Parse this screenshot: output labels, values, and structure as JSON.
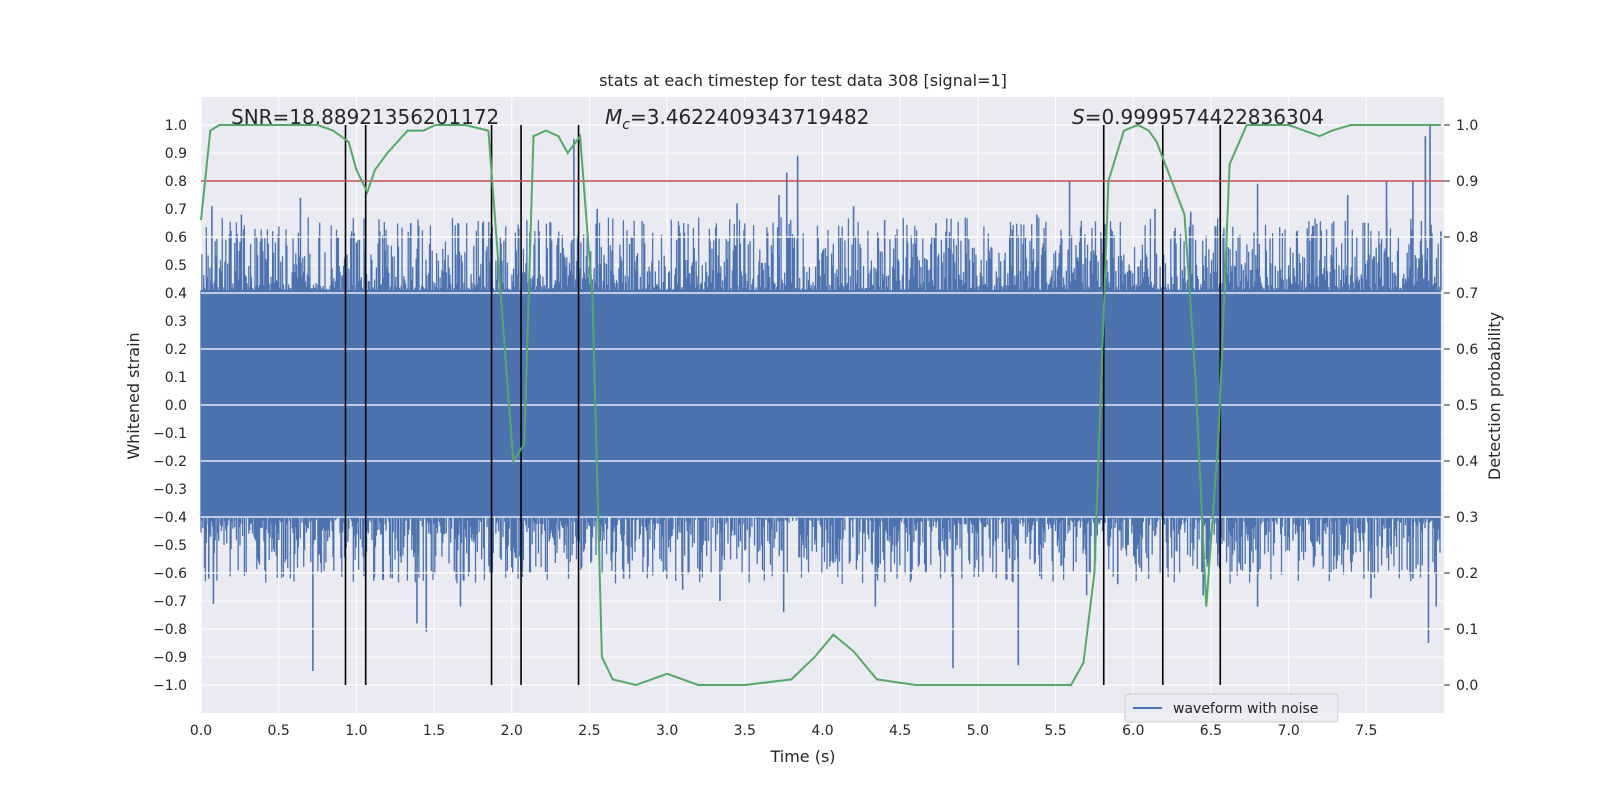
{
  "chart_data": {
    "type": "line",
    "title": "stats at each timestep for test data 308 [signal=1]",
    "xlabel": "Time (s)",
    "ylabel": "Whitened strain",
    "y2label": "Detection probability",
    "xlim": [
      0.0,
      8.0
    ],
    "ylim": [
      -1.1,
      1.1
    ],
    "y2lim": [
      -0.05,
      1.05
    ],
    "x_ticks": [
      0.0,
      0.5,
      1.0,
      1.5,
      2.0,
      2.5,
      3.0,
      3.5,
      4.0,
      4.5,
      5.0,
      5.5,
      6.0,
      6.5,
      7.0,
      7.5
    ],
    "y_ticks": [
      -1.0,
      -0.9,
      -0.8,
      -0.7,
      -0.6,
      -0.5,
      -0.4,
      -0.3,
      -0.2,
      -0.1,
      0.0,
      0.1,
      0.2,
      0.3,
      0.4,
      0.5,
      0.6,
      0.7,
      0.8,
      0.9,
      1.0
    ],
    "y2_ticks": [
      0.0,
      0.1,
      0.2,
      0.3,
      0.4,
      0.5,
      0.6,
      0.7,
      0.8,
      0.9,
      1.0
    ],
    "annotations": {
      "snr": "SNR=18.88921356201172",
      "mc_symbol": "M",
      "mc_sub": "c",
      "mc_value": "=3.4622409343719482",
      "s_symbol": "S",
      "s_value": "=0.9999574422836304"
    },
    "legend": {
      "label": "waveform with noise",
      "placement": "lower-right"
    },
    "threshold_y2": 0.9,
    "vertical_lines_x": [
      0.93,
      1.06,
      1.87,
      2.06,
      2.43,
      5.81,
      6.19,
      6.56
    ],
    "waveform": {
      "name": "waveform with noise",
      "color": "#4c72b0",
      "core_positive": 0.41,
      "core_negative": -0.4,
      "peak_positive": [
        [
          0.07,
          0.71
        ],
        [
          0.26,
          0.68
        ],
        [
          0.64,
          0.74
        ],
        [
          0.88,
          0.6
        ],
        [
          1.0,
          0.58
        ],
        [
          1.35,
          0.65
        ],
        [
          2.4,
          0.95
        ],
        [
          2.55,
          0.7
        ],
        [
          3.45,
          0.72
        ],
        [
          3.72,
          0.75
        ],
        [
          3.77,
          0.83
        ],
        [
          3.84,
          0.89
        ],
        [
          4.2,
          0.71
        ],
        [
          4.4,
          0.66
        ],
        [
          4.73,
          0.65
        ],
        [
          5.38,
          0.68
        ],
        [
          5.59,
          0.8
        ],
        [
          6.14,
          0.7
        ],
        [
          6.37,
          0.69
        ],
        [
          6.8,
          0.79
        ],
        [
          7.38,
          0.75
        ],
        [
          7.63,
          0.8
        ],
        [
          7.8,
          0.8
        ],
        [
          7.88,
          0.96
        ],
        [
          7.91,
          1.0
        ],
        [
          7.98,
          0.62
        ]
      ],
      "peak_negative": [
        [
          0.05,
          -0.62
        ],
        [
          0.08,
          -0.71
        ],
        [
          0.72,
          -0.95
        ],
        [
          1.06,
          -0.55
        ],
        [
          1.39,
          -0.78
        ],
        [
          1.45,
          -0.81
        ],
        [
          1.67,
          -0.72
        ],
        [
          1.86,
          -0.6
        ],
        [
          2.0,
          -0.58
        ],
        [
          2.45,
          -0.58
        ],
        [
          2.72,
          -0.62
        ],
        [
          3.1,
          -0.66
        ],
        [
          3.34,
          -0.7
        ],
        [
          3.75,
          -0.74
        ],
        [
          4.34,
          -0.72
        ],
        [
          4.84,
          -0.94
        ],
        [
          5.26,
          -0.93
        ],
        [
          5.7,
          -0.68
        ],
        [
          5.9,
          -0.64
        ],
        [
          6.45,
          -0.68
        ],
        [
          6.8,
          -0.72
        ],
        [
          7.53,
          -0.69
        ],
        [
          7.8,
          -0.62
        ],
        [
          7.9,
          -0.85
        ],
        [
          7.95,
          -0.72
        ]
      ]
    },
    "detection_probability": {
      "color": "#55a868",
      "points": [
        [
          0.0,
          0.83
        ],
        [
          0.06,
          0.99
        ],
        [
          0.12,
          1.0
        ],
        [
          0.3,
          1.0
        ],
        [
          0.5,
          1.0
        ],
        [
          0.75,
          1.0
        ],
        [
          0.85,
          0.99
        ],
        [
          0.95,
          0.97
        ],
        [
          1.0,
          0.92
        ],
        [
          1.07,
          0.88
        ],
        [
          1.12,
          0.92
        ],
        [
          1.2,
          0.95
        ],
        [
          1.33,
          0.99
        ],
        [
          1.43,
          0.99
        ],
        [
          1.51,
          1.0
        ],
        [
          1.7,
          1.0
        ],
        [
          1.85,
          0.99
        ],
        [
          1.95,
          0.62
        ],
        [
          2.01,
          0.4
        ],
        [
          2.08,
          0.43
        ],
        [
          2.14,
          0.98
        ],
        [
          2.22,
          0.99
        ],
        [
          2.3,
          0.98
        ],
        [
          2.36,
          0.95
        ],
        [
          2.44,
          0.98
        ],
        [
          2.52,
          0.69
        ],
        [
          2.58,
          0.05
        ],
        [
          2.65,
          0.01
        ],
        [
          2.8,
          0.0
        ],
        [
          3.0,
          0.02
        ],
        [
          3.2,
          0.0
        ],
        [
          3.5,
          0.0
        ],
        [
          3.8,
          0.01
        ],
        [
          3.95,
          0.05
        ],
        [
          4.07,
          0.09
        ],
        [
          4.2,
          0.06
        ],
        [
          4.35,
          0.01
        ],
        [
          4.6,
          0.0
        ],
        [
          5.0,
          0.0
        ],
        [
          5.3,
          0.0
        ],
        [
          5.6,
          0.0
        ],
        [
          5.68,
          0.04
        ],
        [
          5.75,
          0.2
        ],
        [
          5.84,
          0.9
        ],
        [
          5.94,
          0.99
        ],
        [
          6.03,
          1.0
        ],
        [
          6.1,
          0.99
        ],
        [
          6.15,
          0.97
        ],
        [
          6.22,
          0.92
        ],
        [
          6.33,
          0.84
        ],
        [
          6.4,
          0.55
        ],
        [
          6.47,
          0.14
        ],
        [
          6.55,
          0.45
        ],
        [
          6.62,
          0.93
        ],
        [
          6.73,
          1.0
        ],
        [
          7.0,
          1.0
        ],
        [
          7.1,
          0.99
        ],
        [
          7.2,
          0.98
        ],
        [
          7.28,
          0.99
        ],
        [
          7.4,
          1.0
        ],
        [
          7.98,
          1.0
        ]
      ]
    }
  }
}
